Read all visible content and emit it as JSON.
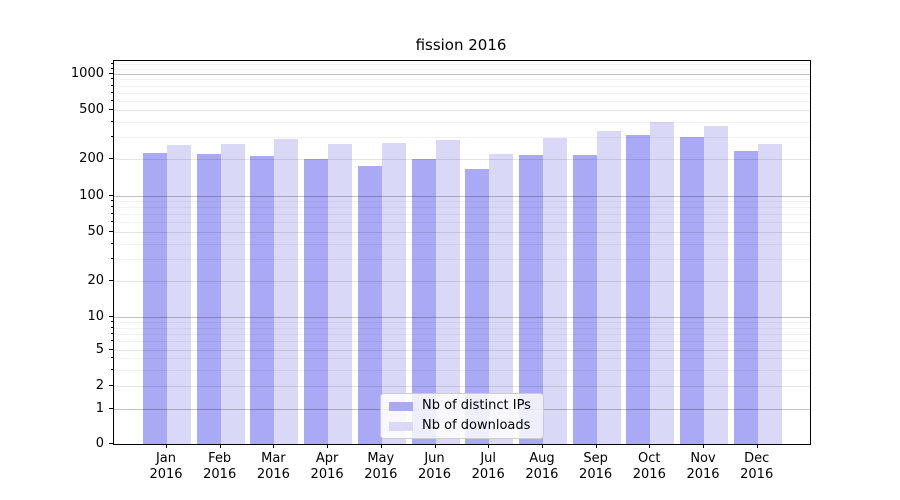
{
  "title": "fission 2016",
  "chart_data": {
    "type": "bar",
    "title": "fission 2016",
    "xlabel": "",
    "ylabel": "",
    "x_year": "2016",
    "categories": [
      "Jan",
      "Feb",
      "Mar",
      "Apr",
      "May",
      "Jun",
      "Jul",
      "Aug",
      "Sep",
      "Oct",
      "Nov",
      "Dec"
    ],
    "series": [
      {
        "name": "Nb of distinct IPs",
        "color": "#a9a9f5",
        "values": [
          225,
          220,
          213,
          203,
          176,
          200,
          168,
          216,
          218,
          318,
          306,
          235
        ]
      },
      {
        "name": "Nb of downloads",
        "color": "#d9d9f7",
        "values": [
          264,
          269,
          292,
          266,
          273,
          289,
          221,
          299,
          341,
          406,
          377,
          266
        ]
      }
    ],
    "yticks": [
      0,
      1,
      2,
      5,
      10,
      20,
      50,
      100,
      200,
      500,
      1000
    ],
    "ylim": [
      0,
      1300
    ],
    "yscale": "symlog",
    "grid": true,
    "legend_position": "lower-center"
  },
  "colors": {
    "bar_distinct_ips": "#a9a9f5",
    "bar_downloads": "#d9d9f7",
    "axis": "#000000",
    "background": "#ffffff"
  }
}
